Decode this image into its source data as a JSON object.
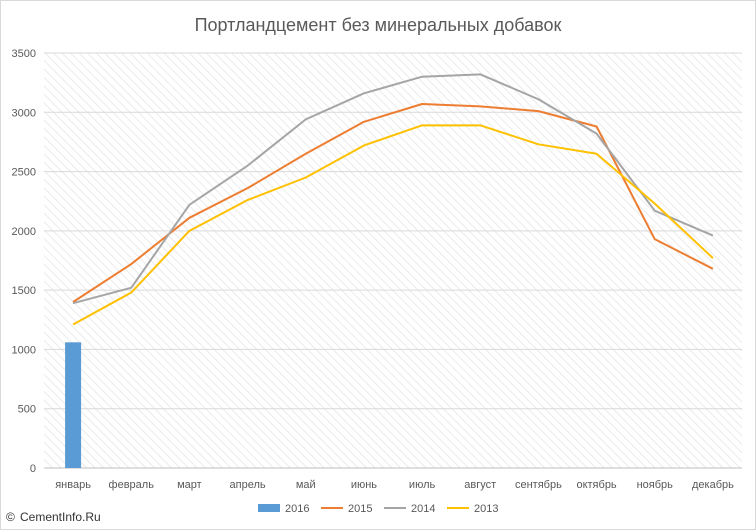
{
  "chart_data": {
    "type": "line",
    "title": "Портландцемент без минеральных добавок",
    "xlabel": "",
    "ylabel": "",
    "ylim": [
      0,
      3500
    ],
    "yticks": [
      0,
      500,
      1000,
      1500,
      2000,
      2500,
      3000,
      3500
    ],
    "grid": true,
    "legend_position": "bottom",
    "categories": [
      "январь",
      "февраль",
      "март",
      "апрель",
      "май",
      "июнь",
      "июль",
      "август",
      "сентябрь",
      "октябрь",
      "ноябрь",
      "декабрь"
    ],
    "series": [
      {
        "name": "2016",
        "kind": "bar",
        "color": "#5b9bd5",
        "values": [
          1060,
          null,
          null,
          null,
          null,
          null,
          null,
          null,
          null,
          null,
          null,
          null
        ]
      },
      {
        "name": "2015",
        "kind": "line",
        "color": "#ed7d31",
        "values": [
          1400,
          1720,
          2110,
          2360,
          2650,
          2920,
          3070,
          3050,
          3010,
          2880,
          1930,
          1680
        ]
      },
      {
        "name": "2014",
        "kind": "line",
        "color": "#a5a5a5",
        "values": [
          1390,
          1520,
          2220,
          2550,
          2940,
          3160,
          3300,
          3320,
          3110,
          2820,
          2170,
          1960
        ]
      },
      {
        "name": "2013",
        "kind": "line",
        "color": "#ffc000",
        "values": [
          1210,
          1480,
          2000,
          2260,
          2450,
          2720,
          2890,
          2890,
          2730,
          2650,
          2230,
          1770
        ]
      }
    ]
  },
  "watermark": {
    "symbol": "©",
    "text": "CementInfo.Ru"
  }
}
